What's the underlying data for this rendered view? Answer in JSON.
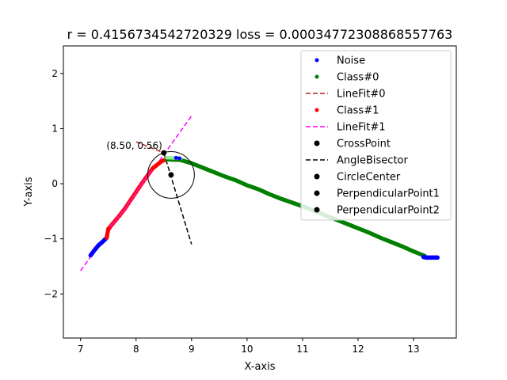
{
  "chart_data": {
    "type": "scatter",
    "title": "r = 0.4156734542720329 loss = 0.00034772308868557763",
    "xlabel": "X-axis",
    "ylabel": "Y-axis",
    "xlim": [
      6.69,
      13.77
    ],
    "ylim": [
      -2.8,
      2.5
    ],
    "x_ticks": [
      "7",
      "8",
      "9",
      "10",
      "11",
      "12",
      "13"
    ],
    "y_ticks": [
      "−2",
      "−1",
      "0",
      "1",
      "2"
    ],
    "grid": false,
    "legend_position": "top-right",
    "annotation": "(8.50, 0.56)",
    "colors": {
      "noise": "#0000ff",
      "class0": "#008000",
      "linefit0": "#b22222",
      "class1": "#ff0000",
      "linefit1": "#ff00ff",
      "markers": "#000000",
      "class0_highlight": "#90ee90",
      "class1_highlight": "#ff1493"
    },
    "series": [
      {
        "name": "Noise",
        "kind": "scatter",
        "color": "#0000ff",
        "x": [
          7.18,
          7.24,
          7.32,
          7.4,
          7.47,
          8.72,
          8.78,
          13.18,
          13.23,
          13.28,
          13.33,
          13.38,
          13.43
        ],
        "y": [
          -1.3,
          -1.22,
          -1.12,
          -1.05,
          -0.98,
          0.47,
          0.46,
          -1.33,
          -1.34,
          -1.34,
          -1.34,
          -1.34,
          -1.34
        ]
      },
      {
        "name": "Class#0",
        "kind": "scatter",
        "color": "#008000",
        "x": [
          8.55,
          8.8,
          9.0,
          9.2,
          9.4,
          9.6,
          9.8,
          10.0,
          10.2,
          10.4,
          10.6,
          10.8,
          11.0,
          11.2,
          11.4,
          11.6,
          11.8,
          12.0,
          12.2,
          12.4,
          12.6,
          12.8,
          13.0,
          13.2
        ],
        "y": [
          0.45,
          0.44,
          0.38,
          0.3,
          0.22,
          0.14,
          0.07,
          -0.02,
          -0.09,
          -0.18,
          -0.26,
          -0.33,
          -0.4,
          -0.48,
          -0.56,
          -0.64,
          -0.72,
          -0.8,
          -0.88,
          -0.97,
          -1.05,
          -1.13,
          -1.22,
          -1.3
        ]
      },
      {
        "name": "LineFit#0",
        "kind": "line",
        "color": "#b22222",
        "dash": "dashed",
        "x": [
          8.0,
          8.5
        ],
        "y": [
          0.76,
          0.56
        ]
      },
      {
        "name": "Class#1",
        "kind": "scatter",
        "color": "#ff0000",
        "x": [
          7.5,
          7.6,
          7.7,
          7.8,
          7.9,
          8.0,
          8.1,
          8.2,
          8.3
        ],
        "y": [
          -0.82,
          -0.7,
          -0.58,
          -0.45,
          -0.3,
          -0.15,
          0.0,
          0.14,
          0.28
        ]
      },
      {
        "name": "LineFit#1",
        "kind": "line",
        "color": "#ff00ff",
        "dash": "dashed",
        "x": [
          7.0,
          9.0
        ],
        "y": [
          -1.58,
          1.23
        ]
      },
      {
        "name": "CrossPoint",
        "kind": "point",
        "color": "#000000",
        "x": [
          8.5
        ],
        "y": [
          0.56
        ]
      },
      {
        "name": "AngleBisector",
        "kind": "line",
        "color": "#000000",
        "dash": "dashed",
        "x": [
          8.5,
          9.0
        ],
        "y": [
          0.56,
          -1.1
        ]
      },
      {
        "name": "CircleCenter",
        "kind": "point",
        "color": "#000000",
        "x": [
          8.63
        ],
        "y": [
          0.16
        ]
      },
      {
        "name": "PerpendicularPoint1",
        "kind": "point",
        "color": "#000000",
        "x": [],
        "y": []
      },
      {
        "name": "PerpendicularPoint2",
        "kind": "point",
        "color": "#000000",
        "x": [],
        "y": []
      }
    ],
    "circle": {
      "cx": 8.63,
      "cy": 0.16,
      "r": 0.42,
      "color": "#000000"
    }
  }
}
